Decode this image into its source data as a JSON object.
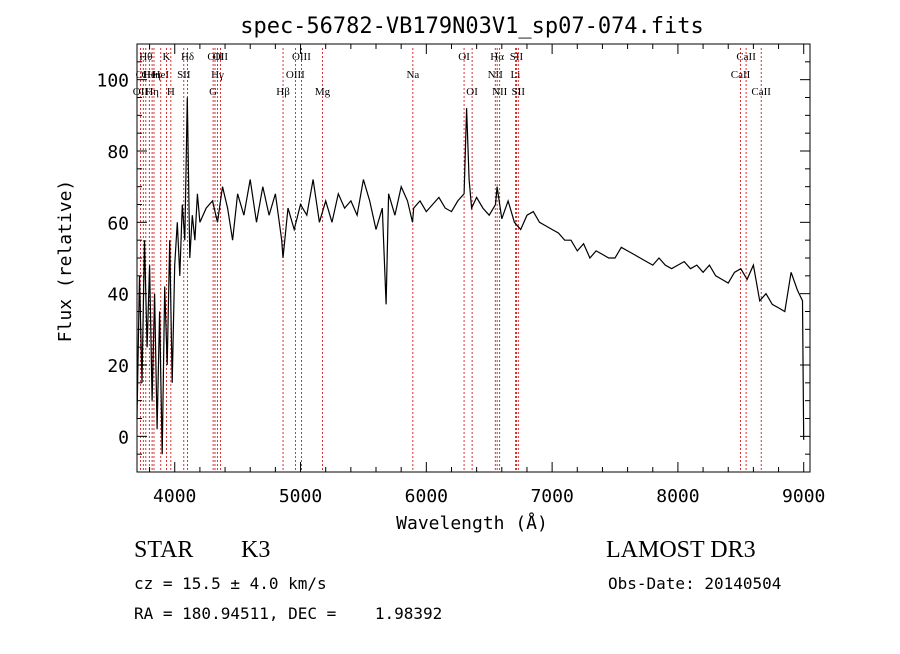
{
  "chart_data": {
    "type": "line",
    "title": "spec-56782-VB179N03V1_sp07-074.fits",
    "xlabel": "Wavelength (Å)",
    "ylabel": "Flux (relative)",
    "xlim": [
      3700,
      9050
    ],
    "ylim": [
      -10,
      110
    ],
    "xticks": [
      4000,
      5000,
      6000,
      7000,
      8000,
      9000
    ],
    "xtick_labels": [
      "4000",
      "5000",
      "6000",
      "7000",
      "8000",
      "9000"
    ],
    "yticks": [
      0,
      20,
      40,
      60,
      80,
      100
    ],
    "ytick_labels": [
      "0",
      "20",
      "40",
      "60",
      "80",
      "100"
    ],
    "line_color": "#000000",
    "marker_color": "#cc0000",
    "series": [
      {
        "name": "spectrum",
        "x": [
          3700,
          3720,
          3740,
          3760,
          3780,
          3800,
          3820,
          3840,
          3860,
          3880,
          3900,
          3920,
          3940,
          3960,
          3980,
          4000,
          4020,
          4040,
          4060,
          4080,
          4100,
          4120,
          4140,
          4160,
          4180,
          4200,
          4250,
          4300,
          4340,
          4380,
          4420,
          4460,
          4500,
          4550,
          4600,
          4650,
          4700,
          4750,
          4800,
          4850,
          4861,
          4900,
          4950,
          5000,
          5050,
          5100,
          5150,
          5200,
          5250,
          5300,
          5350,
          5400,
          5450,
          5500,
          5550,
          5600,
          5650,
          5680,
          5700,
          5750,
          5800,
          5850,
          5890,
          5900,
          5950,
          6000,
          6050,
          6100,
          6150,
          6200,
          6250,
          6300,
          6320,
          6340,
          6360,
          6400,
          6450,
          6500,
          6550,
          6563,
          6600,
          6650,
          6700,
          6750,
          6800,
          6850,
          6900,
          6950,
          7000,
          7050,
          7100,
          7150,
          7200,
          7250,
          7300,
          7350,
          7400,
          7450,
          7500,
          7550,
          7600,
          7650,
          7700,
          7750,
          7800,
          7850,
          7900,
          7950,
          8000,
          8050,
          8100,
          8150,
          8200,
          8250,
          8300,
          8350,
          8400,
          8450,
          8500,
          8550,
          8600,
          8650,
          8700,
          8750,
          8800,
          8850,
          8900,
          8950,
          8990,
          9000
        ],
        "y": [
          5,
          45,
          15,
          55,
          25,
          48,
          10,
          40,
          2,
          35,
          -5,
          42,
          20,
          55,
          15,
          48,
          60,
          45,
          65,
          55,
          95,
          50,
          62,
          55,
          68,
          60,
          64,
          66,
          60,
          70,
          64,
          55,
          68,
          62,
          72,
          60,
          70,
          62,
          68,
          55,
          50,
          64,
          58,
          65,
          62,
          72,
          60,
          66,
          60,
          68,
          64,
          66,
          62,
          72,
          66,
          58,
          64,
          37,
          68,
          62,
          70,
          66,
          60,
          64,
          66,
          63,
          65,
          67,
          64,
          63,
          66,
          68,
          92,
          72,
          64,
          67,
          64,
          62,
          65,
          70,
          61,
          66,
          60,
          58,
          62,
          63,
          60,
          59,
          58,
          57,
          55,
          55,
          52,
          54,
          50,
          52,
          51,
          50,
          50,
          53,
          52,
          51,
          50,
          49,
          48,
          50,
          48,
          47,
          48,
          49,
          47,
          48,
          46,
          48,
          45,
          44,
          43,
          46,
          47,
          44,
          48,
          38,
          40,
          37,
          36,
          35,
          46,
          41,
          38,
          -1
        ]
      }
    ],
    "lines": [
      {
        "wavelength": 3727,
        "label": "OII",
        "row": 2
      },
      {
        "wavelength": 3750,
        "label": "OII",
        "row": 1
      },
      {
        "wavelength": 3770,
        "label": "Hθ",
        "row": 0
      },
      {
        "wavelength": 3798,
        "label": "He",
        "row": 1
      },
      {
        "wavelength": 3820,
        "label": "Hη",
        "row": 2
      },
      {
        "wavelength": 3835,
        "label": "Hη",
        "row": 1
      },
      {
        "wavelength": 3889,
        "label": "HeI",
        "row": 1
      },
      {
        "wavelength": 3934,
        "label": "K",
        "row": 0
      },
      {
        "wavelength": 3969,
        "label": "H",
        "row": 2
      },
      {
        "wavelength": 4072,
        "label": "SII",
        "row": 1
      },
      {
        "wavelength": 4102,
        "label": "Hδ",
        "row": 0
      },
      {
        "wavelength": 4305,
        "label": "G",
        "row": 2
      },
      {
        "wavelength": 4320,
        "label": "OII",
        "row": 0
      },
      {
        "wavelength": 4340,
        "label": "Hγ",
        "row": 1
      },
      {
        "wavelength": 4363,
        "label": "OII",
        "row": 0
      },
      {
        "wavelength": 4861,
        "label": "Hβ",
        "row": 2
      },
      {
        "wavelength": 4959,
        "label": "OIII",
        "row": 1
      },
      {
        "wavelength": 5007,
        "label": "OIII",
        "row": 0
      },
      {
        "wavelength": 5175,
        "label": "Mg",
        "row": 2
      },
      {
        "wavelength": 5893,
        "label": "Na",
        "row": 1
      },
      {
        "wavelength": 6300,
        "label": "OI",
        "row": 0
      },
      {
        "wavelength": 6364,
        "label": "OI",
        "row": 2
      },
      {
        "wavelength": 6548,
        "label": "NII",
        "row": 1
      },
      {
        "wavelength": 6563,
        "label": "Hα",
        "row": 0
      },
      {
        "wavelength": 6583,
        "label": "NII",
        "row": 2
      },
      {
        "wavelength": 6708,
        "label": "Li",
        "row": 1
      },
      {
        "wavelength": 6717,
        "label": "SII",
        "row": 0
      },
      {
        "wavelength": 6731,
        "label": "SII",
        "row": 2
      },
      {
        "wavelength": 8498,
        "label": "CaII",
        "row": 1
      },
      {
        "wavelength": 8542,
        "label": "CaII",
        "row": 0
      },
      {
        "wavelength": 8662,
        "label": "CaII",
        "row": 2
      }
    ]
  },
  "info": {
    "class": "STAR",
    "subclass": "K3",
    "survey": "LAMOST DR3",
    "cz": "cz = 15.5 ± 4.0 km/s",
    "obs_date": "Obs-Date: 20140504",
    "radec": "RA = 180.94511, DEC =    1.98392"
  }
}
